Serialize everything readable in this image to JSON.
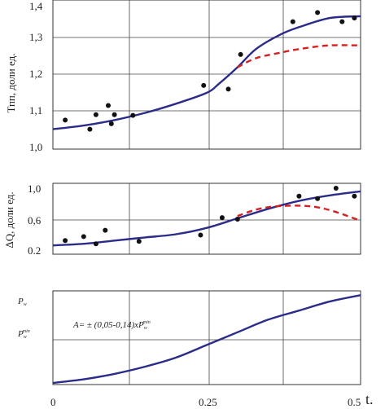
{
  "chart_data": [
    {
      "type": "line",
      "ylabel": "Тпп, доли ед.",
      "yticks": [
        "1,0",
        "1,1",
        "1,2",
        "1,3",
        "1,4"
      ],
      "ylim": [
        1.0,
        1.4
      ],
      "xlim": [
        0,
        0.5
      ],
      "grid": true,
      "series": [
        {
          "style": "solid",
          "color": "#2b2b8a",
          "x": [
            0,
            0.05,
            0.1,
            0.15,
            0.2,
            0.25,
            0.27,
            0.3,
            0.33,
            0.37,
            0.4,
            0.45,
            0.5
          ],
          "y": [
            1.05,
            1.06,
            1.075,
            1.095,
            1.12,
            1.15,
            1.175,
            1.22,
            1.27,
            1.31,
            1.33,
            1.355,
            1.36
          ]
        },
        {
          "style": "dashed",
          "color": "#d42020",
          "x": [
            0.3,
            0.33,
            0.37,
            0.4,
            0.45,
            0.5
          ],
          "y": [
            1.22,
            1.245,
            1.26,
            1.27,
            1.28,
            1.28
          ]
        },
        {
          "style": "points",
          "color": "#111111",
          "x": [
            0.02,
            0.06,
            0.07,
            0.09,
            0.095,
            0.1,
            0.13,
            0.245,
            0.285,
            0.305,
            0.39,
            0.43,
            0.47,
            0.49
          ],
          "y": [
            1.075,
            1.05,
            1.09,
            1.115,
            1.065,
            1.09,
            1.088,
            1.17,
            1.16,
            1.255,
            1.345,
            1.37,
            1.345,
            1.355
          ]
        }
      ]
    },
    {
      "type": "line",
      "ylabel": "ΔQ, доли ед.",
      "yticks": [
        "0.2",
        "0,6",
        "1,0"
      ],
      "ylim": [
        0.2,
        1.0
      ],
      "xlim": [
        0,
        0.5
      ],
      "grid": true,
      "series": [
        {
          "style": "solid",
          "color": "#2b2b8a",
          "x": [
            0,
            0.05,
            0.1,
            0.15,
            0.2,
            0.25,
            0.3,
            0.35,
            0.4,
            0.45,
            0.5
          ],
          "y": [
            0.27,
            0.29,
            0.33,
            0.37,
            0.41,
            0.49,
            0.61,
            0.73,
            0.83,
            0.9,
            0.95
          ]
        },
        {
          "style": "dashed",
          "color": "#d42020",
          "x": [
            0.3,
            0.33,
            0.36,
            0.4,
            0.43,
            0.46,
            0.5
          ],
          "y": [
            0.64,
            0.72,
            0.76,
            0.77,
            0.75,
            0.69,
            0.58
          ]
        },
        {
          "style": "points",
          "color": "#111111",
          "x": [
            0.02,
            0.05,
            0.07,
            0.085,
            0.14,
            0.24,
            0.275,
            0.3,
            0.4,
            0.43,
            0.46,
            0.49
          ],
          "y": [
            0.33,
            0.38,
            0.29,
            0.46,
            0.32,
            0.4,
            0.62,
            0.6,
            0.89,
            0.86,
            0.99,
            0.89
          ]
        }
      ]
    },
    {
      "type": "line",
      "yticks": [
        "Pw",
        "Pwmin"
      ],
      "xticks": [
        "0",
        "0.25",
        "0.5"
      ],
      "xlim": [
        0,
        0.5
      ],
      "ylim": [
        0,
        1
      ],
      "xlabel": "t.",
      "annotation": "A= ± (0,05-0,14)xP",
      "annotation_sup": "min",
      "annotation_sub": "w",
      "grid": true,
      "series": [
        {
          "style": "solid",
          "color": "#2b2b8a",
          "x": [
            0,
            0.05,
            0.1,
            0.15,
            0.2,
            0.25,
            0.3,
            0.35,
            0.4,
            0.45,
            0.5
          ],
          "y": [
            0.0,
            0.04,
            0.1,
            0.18,
            0.28,
            0.42,
            0.56,
            0.7,
            0.8,
            0.9,
            0.97
          ]
        }
      ]
    }
  ]
}
